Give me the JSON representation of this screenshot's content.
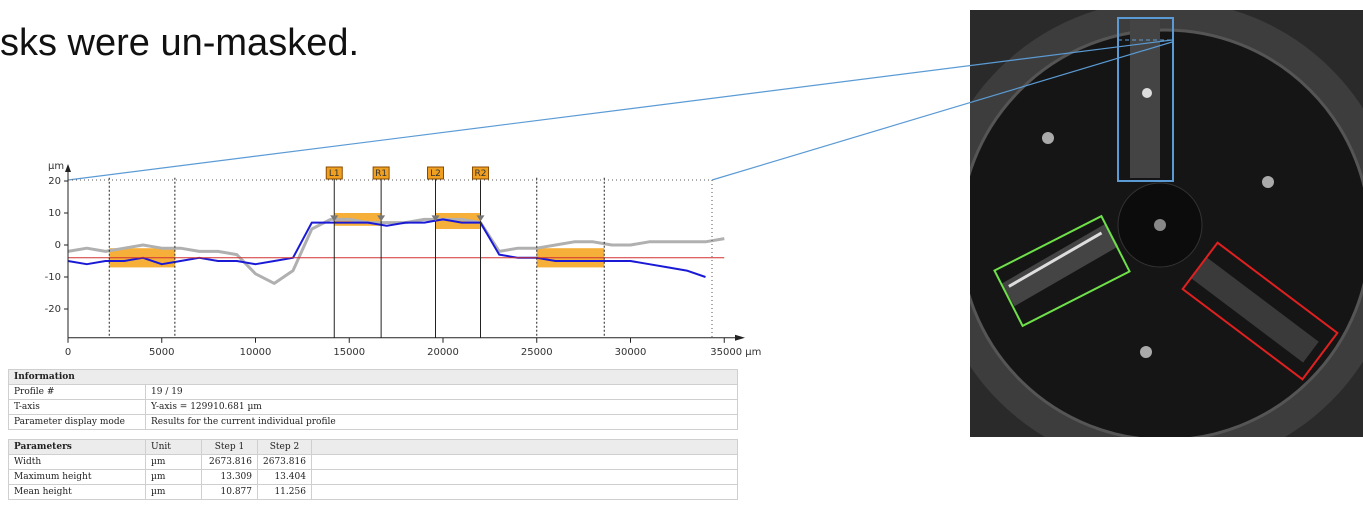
{
  "slide_text": "sks were un-masked.",
  "chart_data": {
    "type": "line",
    "y_label": "µm",
    "x": [
      0,
      1000,
      2000,
      3000,
      4000,
      5000,
      6000,
      7000,
      8000,
      9000,
      10000,
      11000,
      12000,
      13000,
      14000,
      15000,
      16000,
      17000,
      18000,
      19000,
      20000,
      21000,
      22000,
      23000,
      24000,
      25000,
      26000,
      27000,
      28000,
      29000,
      30000,
      31000,
      32000,
      33000,
      34000,
      35000
    ],
    "series": [
      {
        "color": "#b0b0b0",
        "values": [
          -2,
          -1,
          -2,
          -1,
          0,
          -1,
          -1,
          -2,
          -2,
          -3,
          -9,
          -12,
          -8,
          5,
          8,
          8,
          7,
          7,
          7,
          8,
          8,
          8,
          7,
          -2,
          -1,
          -1,
          0,
          1,
          1,
          0,
          0,
          1,
          1,
          1,
          1,
          2
        ]
      },
      {
        "color": "#1a1ad6",
        "values": [
          -5,
          -6,
          -5,
          -5,
          -4,
          -6,
          -5,
          -4,
          -5,
          -5,
          -6,
          -5,
          -4,
          7,
          7,
          7,
          7,
          6,
          7,
          7,
          8,
          7,
          7,
          -3,
          -4,
          -4,
          -5,
          -5,
          -5,
          -5,
          -5,
          -6,
          -7,
          -8,
          -10,
          null
        ]
      }
    ],
    "xlim": [
      0,
      36000
    ],
    "ylim": [
      -29,
      21
    ],
    "xticks": [
      0,
      5000,
      10000,
      15000,
      20000,
      25000,
      30000,
      {
        "value": 35000,
        "label": "35000 µm"
      }
    ],
    "yticks": [
      -20,
      -10,
      0,
      10,
      20
    ],
    "reference_y": -4,
    "reference_color": "#d03030",
    "region_color": "#f5a623",
    "regions": [
      {
        "x": [
          2200,
          5700
        ],
        "y": [
          -7,
          -1
        ]
      },
      {
        "x": [
          14200,
          16700
        ],
        "y": [
          6,
          10
        ]
      },
      {
        "x": [
          19600,
          22000
        ],
        "y": [
          5,
          10
        ]
      },
      {
        "x": [
          25000,
          28600
        ],
        "y": [
          -7,
          -1
        ]
      }
    ],
    "cursor_lines": [
      2200,
      5700,
      25000,
      28600
    ],
    "markers": [
      {
        "label": "L1",
        "x": 14200
      },
      {
        "label": "R1",
        "x": 16700
      },
      {
        "label": "L2",
        "x": 19600
      },
      {
        "label": "R2",
        "x": 22000
      }
    ]
  },
  "information": {
    "title": "Information",
    "rows": [
      [
        "Profile #",
        "19 / 19"
      ],
      [
        "T-axis",
        "Y-axis = 129910.681 µm"
      ],
      [
        "Parameter display mode",
        "Results for the current individual profile"
      ]
    ]
  },
  "parameters": {
    "header": [
      "Parameters",
      "Unit",
      "Step 1",
      "Step 2"
    ],
    "rows": [
      [
        "Width",
        "µm",
        "2673.816",
        "2673.816"
      ],
      [
        "Maximum height",
        "µm",
        "13.309",
        "13.404"
      ],
      [
        "Mean height",
        "µm",
        "10.877",
        "11.256"
      ]
    ]
  }
}
